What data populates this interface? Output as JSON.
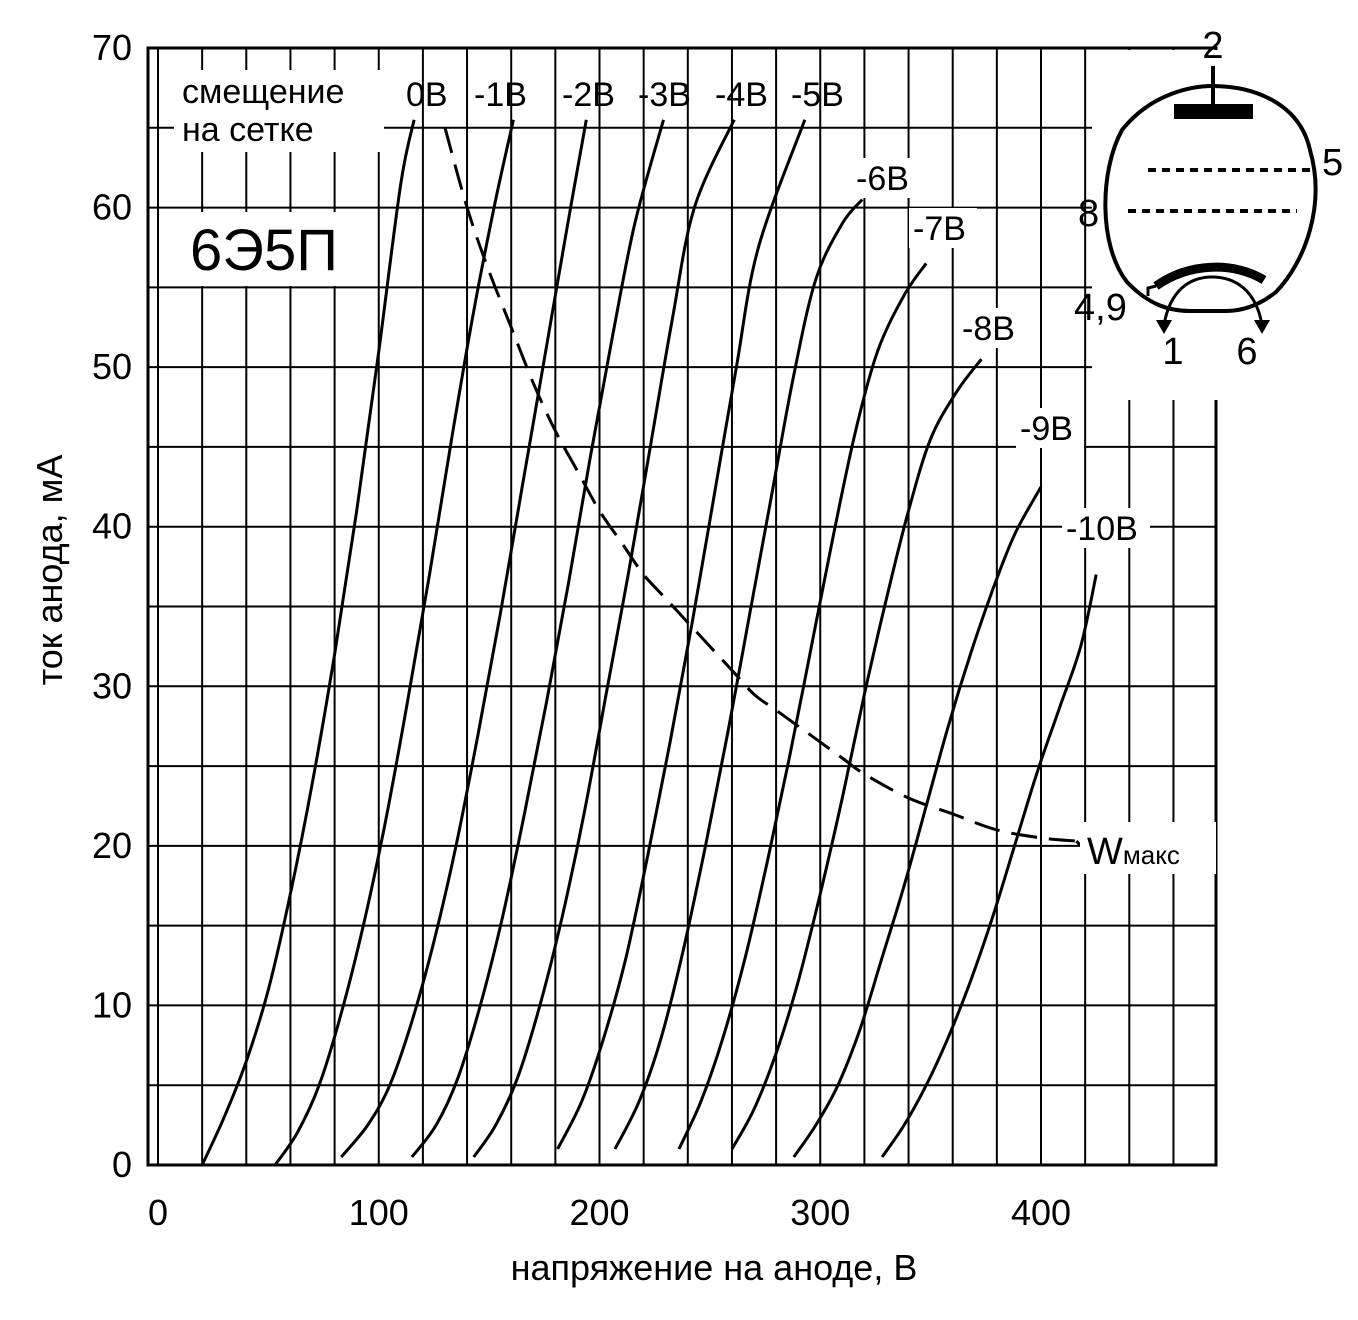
{
  "chart_data": {
    "type": "line",
    "title": "6Э5П",
    "xlabel": "напряжение на аноде, В",
    "ylabel": "ток анода,  мА",
    "xlim": [
      0,
      478
    ],
    "ylim": [
      0,
      70
    ],
    "x_ticks": [
      0,
      100,
      200,
      300,
      400
    ],
    "y_ticks": [
      0,
      10,
      20,
      30,
      40,
      50,
      60,
      70
    ],
    "x_grid_step": 20,
    "y_grid_step": 5,
    "grid": true,
    "legend_title": "смещение\nна сетке",
    "series": [
      {
        "name": "0В",
        "values": [
          [
            20,
            0
          ],
          [
            30,
            3
          ],
          [
            40,
            6.5
          ],
          [
            50,
            11
          ],
          [
            60,
            17
          ],
          [
            70,
            24
          ],
          [
            80,
            32
          ],
          [
            90,
            41
          ],
          [
            100,
            51
          ],
          [
            110,
            61.5
          ],
          [
            116,
            65.5
          ]
        ]
      },
      {
        "name": "-1В",
        "values": [
          [
            53,
            0
          ],
          [
            63,
            2
          ],
          [
            73,
            5
          ],
          [
            83,
            9.5
          ],
          [
            93,
            15
          ],
          [
            103,
            21.5
          ],
          [
            113,
            29
          ],
          [
            123,
            37
          ],
          [
            133,
            45.5
          ],
          [
            143,
            53.5
          ],
          [
            153,
            60.5
          ],
          [
            161,
            65.5
          ]
        ]
      },
      {
        "name": "-2В",
        "values": [
          [
            83,
            0.5
          ],
          [
            95,
            2.5
          ],
          [
            105,
            5
          ],
          [
            115,
            9
          ],
          [
            125,
            14
          ],
          [
            135,
            20
          ],
          [
            145,
            27
          ],
          [
            155,
            34.5
          ],
          [
            165,
            42.5
          ],
          [
            175,
            50.5
          ],
          [
            185,
            58.5
          ],
          [
            194,
            65.5
          ]
        ]
      },
      {
        "name": "-3В",
        "values": [
          [
            115,
            0.5
          ],
          [
            126,
            2.5
          ],
          [
            136,
            5.5
          ],
          [
            146,
            10
          ],
          [
            156,
            15.5
          ],
          [
            166,
            22
          ],
          [
            176,
            29
          ],
          [
            186,
            36.5
          ],
          [
            196,
            44.5
          ],
          [
            206,
            52
          ],
          [
            216,
            59
          ],
          [
            229,
            65.5
          ]
        ]
      },
      {
        "name": "-4В",
        "values": [
          [
            143,
            0.5
          ],
          [
            153,
            2.5
          ],
          [
            163,
            5.5
          ],
          [
            173,
            10
          ],
          [
            183,
            15.5
          ],
          [
            193,
            22
          ],
          [
            203,
            29.5
          ],
          [
            213,
            37
          ],
          [
            223,
            45
          ],
          [
            233,
            53
          ],
          [
            243,
            60
          ],
          [
            261,
            65.5
          ]
        ]
      },
      {
        "name": "-5В",
        "values": [
          [
            181,
            1
          ],
          [
            192,
            4
          ],
          [
            202,
            8
          ],
          [
            212,
            13
          ],
          [
            222,
            19.5
          ],
          [
            232,
            26.5
          ],
          [
            242,
            34
          ],
          [
            252,
            42
          ],
          [
            262,
            50
          ],
          [
            272,
            57.5
          ],
          [
            293,
            65.5
          ]
        ]
      },
      {
        "name": "-6В",
        "values": [
          [
            207,
            1
          ],
          [
            218,
            4
          ],
          [
            228,
            8
          ],
          [
            238,
            13.5
          ],
          [
            248,
            20
          ],
          [
            258,
            27
          ],
          [
            268,
            34.5
          ],
          [
            278,
            42
          ],
          [
            288,
            49.5
          ],
          [
            298,
            55.5
          ],
          [
            310,
            59
          ],
          [
            319,
            60.5
          ]
        ]
      },
      {
        "name": "-7В",
        "values": [
          [
            236,
            1
          ],
          [
            246,
            4
          ],
          [
            256,
            8
          ],
          [
            266,
            13
          ],
          [
            276,
            19
          ],
          [
            286,
            25.5
          ],
          [
            296,
            32.5
          ],
          [
            306,
            39.5
          ],
          [
            316,
            46
          ],
          [
            326,
            51
          ],
          [
            338,
            54.5
          ],
          [
            348,
            56.5
          ]
        ]
      },
      {
        "name": "-8В",
        "values": [
          [
            260,
            1
          ],
          [
            270,
            3.5
          ],
          [
            280,
            7
          ],
          [
            290,
            11.5
          ],
          [
            300,
            17
          ],
          [
            310,
            23
          ],
          [
            320,
            29.5
          ],
          [
            330,
            35.5
          ],
          [
            340,
            41
          ],
          [
            350,
            45.5
          ],
          [
            362,
            48.5
          ],
          [
            373,
            50.5
          ]
        ]
      },
      {
        "name": "-9В",
        "values": [
          [
            288,
            0.5
          ],
          [
            298,
            2.5
          ],
          [
            308,
            5
          ],
          [
            318,
            8.5
          ],
          [
            328,
            13
          ],
          [
            338,
            17.5
          ],
          [
            348,
            22.5
          ],
          [
            358,
            27.5
          ],
          [
            368,
            32
          ],
          [
            378,
            36
          ],
          [
            388,
            39.5
          ],
          [
            400,
            42.5
          ]
        ]
      },
      {
        "name": "-10В",
        "values": [
          [
            328,
            0.5
          ],
          [
            338,
            2.5
          ],
          [
            348,
            5
          ],
          [
            358,
            8
          ],
          [
            368,
            11.5
          ],
          [
            378,
            15.5
          ],
          [
            388,
            20
          ],
          [
            398,
            24.5
          ],
          [
            408,
            28.5
          ],
          [
            418,
            32.5
          ],
          [
            425,
            37
          ]
        ]
      }
    ],
    "wmax_curve": {
      "name": "Wмакс",
      "dashed": true,
      "values": [
        [
          130,
          65
        ],
        [
          140,
          60
        ],
        [
          150,
          56
        ],
        [
          160,
          52.5
        ],
        [
          170,
          49
        ],
        [
          180,
          46
        ],
        [
          190,
          43.5
        ],
        [
          200,
          41
        ],
        [
          210,
          39
        ],
        [
          220,
          37
        ],
        [
          230,
          35.5
        ],
        [
          240,
          34
        ],
        [
          250,
          32.5
        ],
        [
          260,
          31
        ],
        [
          270,
          29.5
        ],
        [
          280,
          28.5
        ],
        [
          290,
          27.5
        ],
        [
          300,
          26.5
        ],
        [
          310,
          25.5
        ],
        [
          320,
          24.5
        ],
        [
          340,
          23
        ],
        [
          360,
          22
        ],
        [
          380,
          21
        ],
        [
          400,
          20.5
        ],
        [
          416,
          20.3
        ]
      ]
    }
  },
  "labels": {
    "legend_line1": "смещение",
    "legend_line2": "на сетке",
    "wmax_main": "W",
    "wmax_sub": "макс"
  },
  "tube_diagram": {
    "pins": [
      "2",
      "5",
      "8",
      "4,9",
      "1",
      "6"
    ]
  }
}
